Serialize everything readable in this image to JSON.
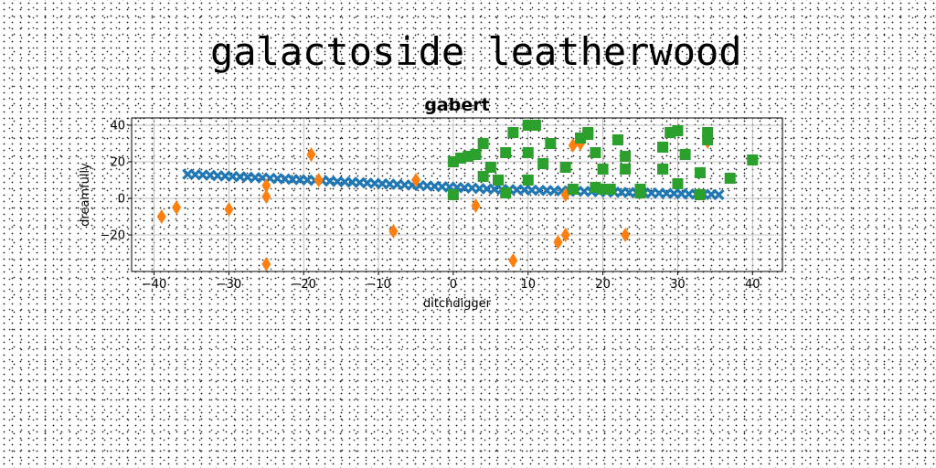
{
  "page": {
    "title": "galactoside leatherwood"
  },
  "chart_data": {
    "type": "scatter",
    "title": "gabert",
    "xlabel": "ditchdigger",
    "ylabel": "dreamfully",
    "xlim": [
      -43,
      44
    ],
    "ylim": [
      -40,
      44
    ],
    "xticks": [
      -40,
      -30,
      -20,
      -10,
      0,
      10,
      20,
      30,
      40
    ],
    "yticks": [
      -20,
      0,
      20,
      40
    ],
    "grid": true,
    "colors": {
      "series1": "#1f77b4",
      "series2": "#ff7f0e",
      "series3": "#2ca02c",
      "grid": "#b0b0b0"
    },
    "series": [
      {
        "marker": "x",
        "color": "#1f77b4",
        "x": [
          -35.5,
          -34.5,
          -33.5,
          -32.5,
          -31.5,
          -30.5,
          -29.5,
          -28.5,
          -27.5,
          -26.5,
          -25.5,
          -24.5,
          -23.5,
          -22.5,
          -21.5,
          -20.5,
          -19.5,
          -18.5,
          -17.5,
          -16.5,
          -15.5,
          -14.5,
          -13.5,
          -12.5,
          -11.5,
          -10.5,
          -9.5,
          -8.5,
          -7.5,
          -6.5,
          -5.5,
          -4.5,
          -3.5,
          -2.5,
          -1.5,
          -0.5,
          0.5,
          1.5,
          2.5,
          3.5,
          4.5,
          5.5,
          6.5,
          7.5,
          8.5,
          9.5,
          10.5,
          11.5,
          12.5,
          13.5,
          14.5,
          15.5,
          16.5,
          17.5,
          18.5,
          19.5,
          20.5,
          21.5,
          22.5,
          23.5,
          24.5,
          25.5,
          26.5,
          27.5,
          28.5,
          29.5,
          30.5,
          31.5,
          32.5,
          33.5,
          34.5,
          35.5
        ],
        "y": [
          13.2,
          13.0,
          12.8,
          12.6,
          12.4,
          12.2,
          12.0,
          11.8,
          11.6,
          11.4,
          11.2,
          11.0,
          10.8,
          10.6,
          10.4,
          10.2,
          10.0,
          9.8,
          9.6,
          9.4,
          9.2,
          9.0,
          8.8,
          8.6,
          8.4,
          8.2,
          8.0,
          7.8,
          7.6,
          7.4,
          7.2,
          7.0,
          6.8,
          6.6,
          6.4,
          6.2,
          6.0,
          5.8,
          5.6,
          5.4,
          5.2,
          5.0,
          4.9,
          4.8,
          4.7,
          4.6,
          4.5,
          4.4,
          4.3,
          4.2,
          4.1,
          4.0,
          3.9,
          3.8,
          3.7,
          3.6,
          3.5,
          3.4,
          3.3,
          3.2,
          3.1,
          3.0,
          2.9,
          2.8,
          2.7,
          2.6,
          2.5,
          2.4,
          2.3,
          2.2,
          2.1,
          2.0
        ]
      },
      {
        "marker": "thin_diamond",
        "color": "#ff7f0e",
        "x": [
          -39,
          -37,
          -30,
          -25,
          -25,
          -25,
          -19,
          -18,
          -8,
          -5,
          3,
          8,
          14,
          15,
          15,
          16,
          17,
          23,
          34
        ],
        "y": [
          -10,
          -5,
          -6,
          7,
          1,
          -36,
          24,
          10,
          -18,
          10,
          -4,
          -34,
          -24,
          -20,
          2,
          29,
          30,
          -20,
          31
        ]
      },
      {
        "marker": "s",
        "color": "#2ca02c",
        "x": [
          0,
          0,
          1,
          2,
          3,
          4,
          4,
          5,
          6,
          7,
          7,
          8,
          10,
          10,
          10,
          11,
          12,
          13,
          15,
          16,
          17,
          18,
          18,
          19,
          19,
          20,
          20,
          21,
          22,
          23,
          23,
          25,
          25,
          28,
          28,
          29,
          30,
          30,
          31,
          33,
          33,
          34,
          34,
          37,
          40
        ],
        "y": [
          2,
          20,
          22,
          23,
          24,
          30,
          12,
          17,
          10,
          25,
          3,
          36,
          40,
          25,
          10,
          40,
          19,
          30,
          17,
          5,
          33,
          35,
          36,
          6,
          25,
          16,
          5,
          5,
          32,
          23,
          16,
          5,
          3,
          28,
          16,
          36,
          37,
          8,
          24,
          2,
          14,
          36,
          32,
          11,
          21
        ]
      }
    ]
  }
}
